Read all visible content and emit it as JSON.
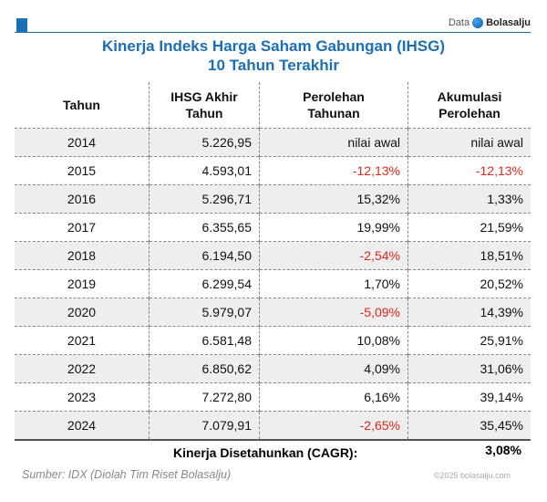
{
  "brand": {
    "prefix": "Data",
    "name": "Bolasalju",
    "accent": "#1a6fb5"
  },
  "title": {
    "line1": "Kinerja Indeks Harga Saham Gabungan (IHSG)",
    "line2": "10 Tahun Terakhir"
  },
  "table": {
    "headers": [
      "Tahun",
      "IHSG Akhir Tahun",
      "Perolehan Tahunan",
      "Akumulasi Perolehan"
    ],
    "rows": [
      [
        "2014",
        "5.226,95",
        "nilai awal",
        "nilai awal"
      ],
      [
        "2015",
        "4.593,01",
        "-12,13%",
        "-12,13%"
      ],
      [
        "2016",
        "5.296,71",
        "15,32%",
        "1,33%"
      ],
      [
        "2017",
        "6.355,65",
        "19,99%",
        "21,59%"
      ],
      [
        "2018",
        "6.194,50",
        "-2,54%",
        "18,51%"
      ],
      [
        "2019",
        "6.299,54",
        "1,70%",
        "20,52%"
      ],
      [
        "2020",
        "5.979,07",
        "-5,09%",
        "14,39%"
      ],
      [
        "2021",
        "6.581,48",
        "10,08%",
        "25,91%"
      ],
      [
        "2022",
        "6.850,62",
        "4,09%",
        "31,06%"
      ],
      [
        "2023",
        "7.272,80",
        "6,16%",
        "39,14%"
      ],
      [
        "2024",
        "7.079,91",
        "-2,65%",
        "35,45%"
      ]
    ]
  },
  "cagr": {
    "label": "Kinerja Disetahunkan (CAGR):",
    "value": "3,08%"
  },
  "source": "Sumber: IDX (Diolah Tim Riset Bolasalju)",
  "copyright": "©2025 bolasalju.com"
}
